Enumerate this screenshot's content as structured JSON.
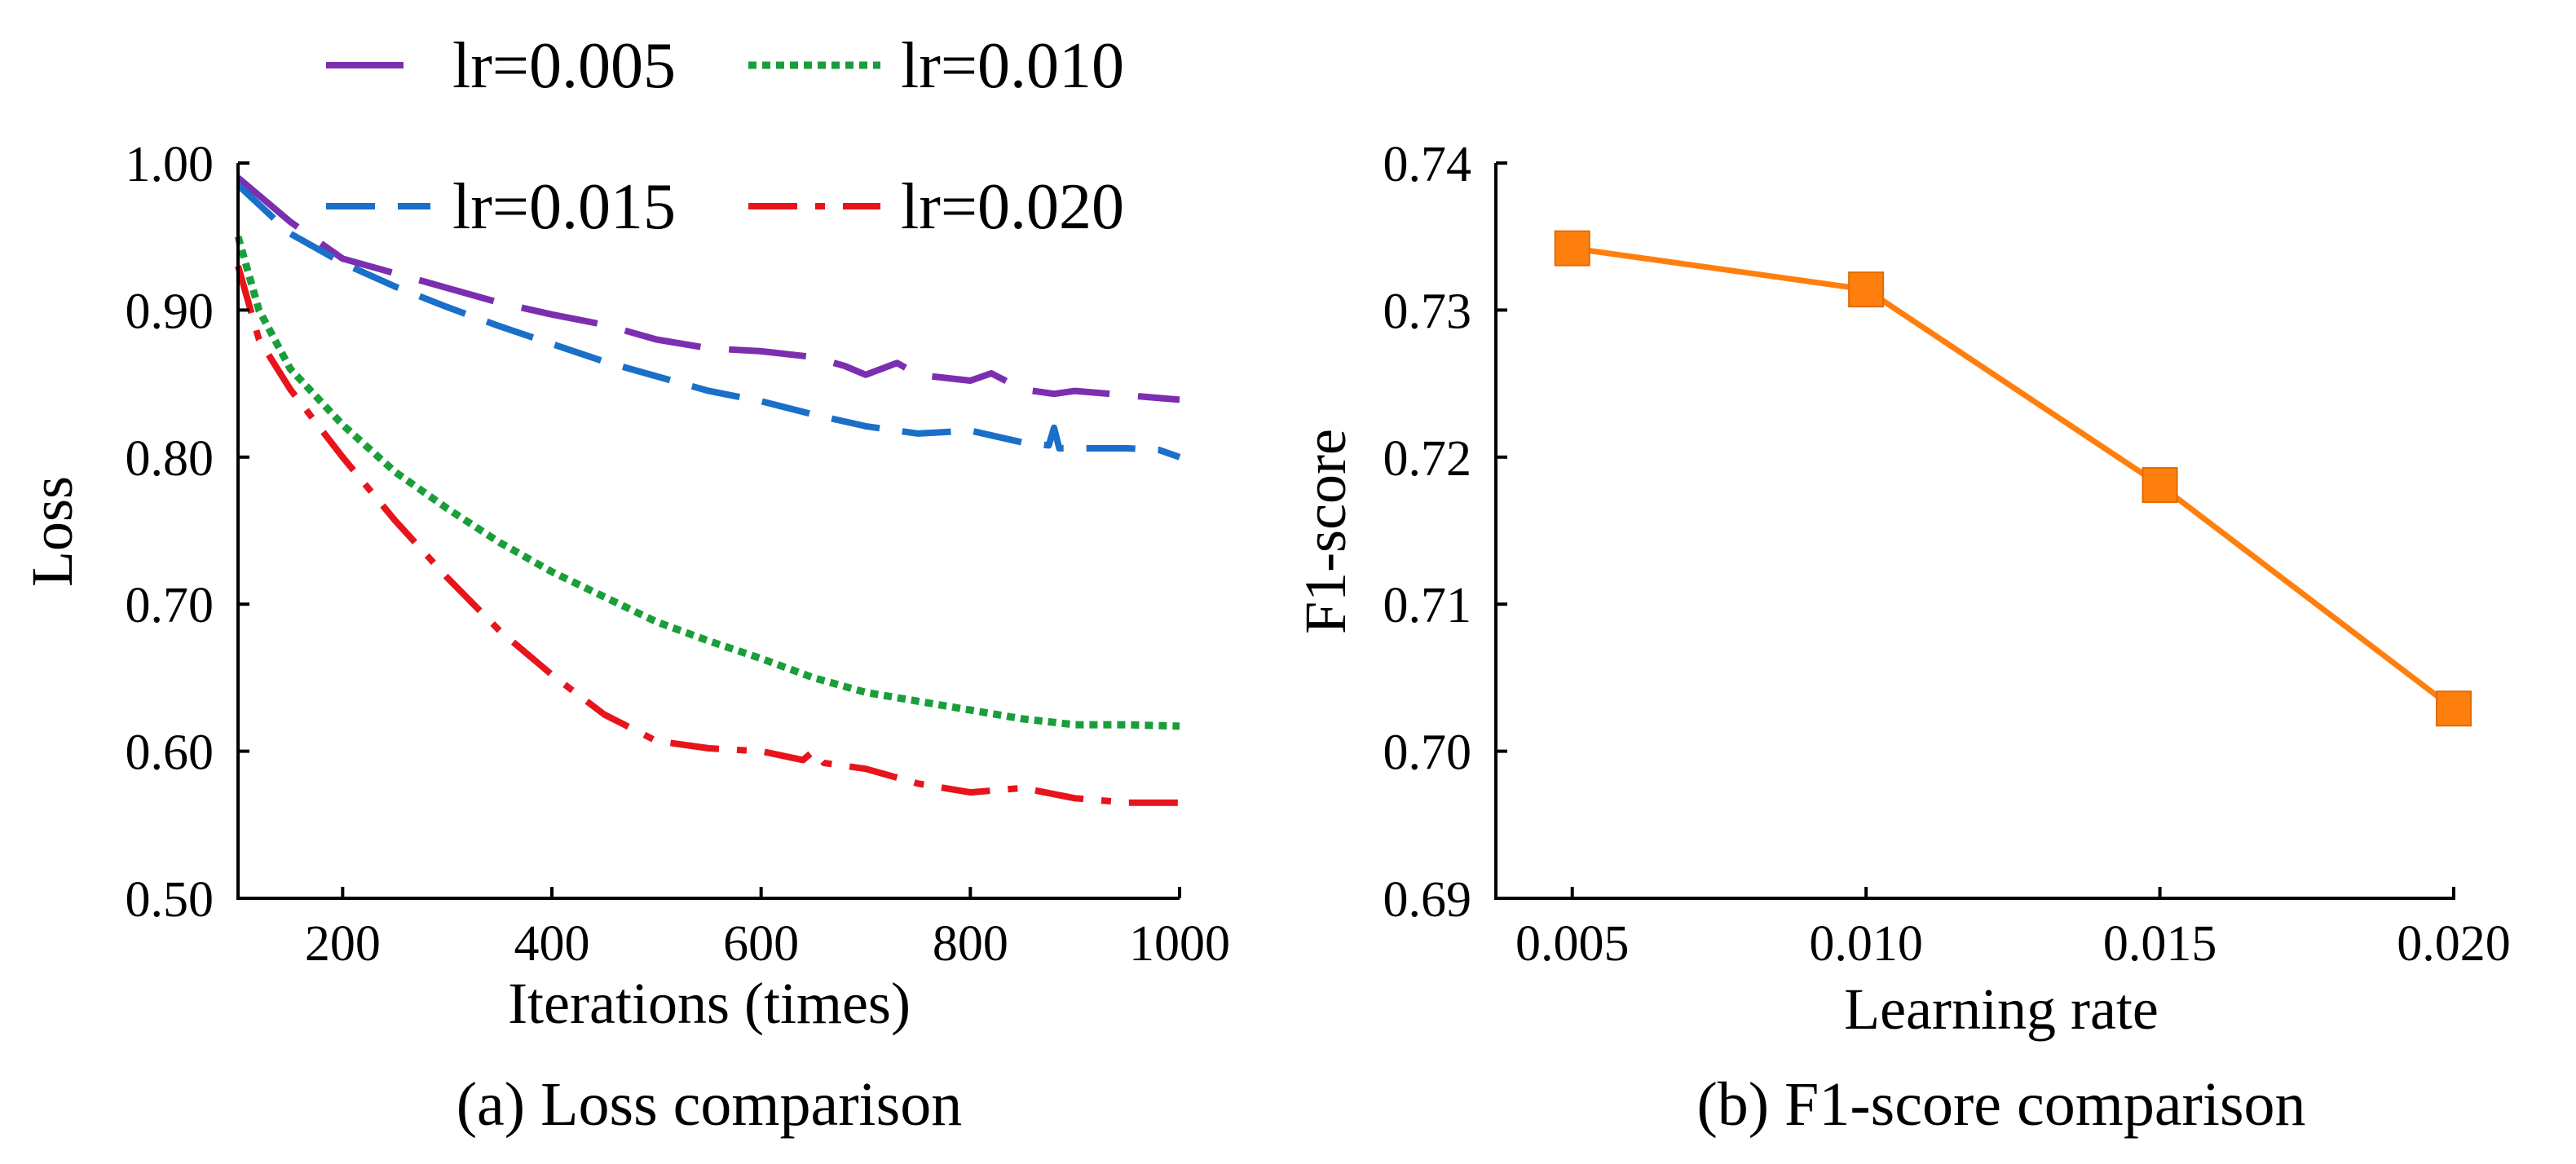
{
  "chart_data": [
    {
      "type": "line",
      "caption": "(a) Loss comparison",
      "xlabel": "Iterations (times)",
      "ylabel": "Loss",
      "xlim": [
        100,
        1000
      ],
      "ylim": [
        0.5,
        1.0
      ],
      "xticks": [
        200,
        400,
        600,
        800,
        1000
      ],
      "xtick_labels": [
        "200",
        "400",
        "600",
        "800",
        "1000"
      ],
      "yticks": [
        0.5,
        0.6,
        0.7,
        0.8,
        0.9,
        1.0
      ],
      "ytick_labels": [
        "0.50",
        "0.60",
        "0.70",
        "0.80",
        "0.90",
        "1.00"
      ],
      "grid": false,
      "legend_position": "top",
      "series": [
        {
          "name": "lr=0.005",
          "color": "#7b2fb0",
          "style": "long-dash",
          "x": [
            100,
            150,
            200,
            250,
            300,
            350,
            400,
            450,
            500,
            550,
            600,
            650,
            680,
            700,
            730,
            750,
            800,
            820,
            850,
            880,
            900,
            950,
            1000
          ],
          "y": [
            0.99,
            0.96,
            0.935,
            0.925,
            0.915,
            0.905,
            0.897,
            0.89,
            0.88,
            0.874,
            0.872,
            0.868,
            0.862,
            0.856,
            0.864,
            0.856,
            0.852,
            0.857,
            0.846,
            0.843,
            0.845,
            0.842,
            0.839
          ]
        },
        {
          "name": "lr=0.010",
          "color": "#1a9e3a",
          "style": "dotted",
          "x": [
            100,
            120,
            150,
            200,
            250,
            300,
            350,
            400,
            450,
            500,
            550,
            600,
            650,
            700,
            750,
            800,
            850,
            900,
            950,
            1000
          ],
          "y": [
            0.95,
            0.9,
            0.86,
            0.822,
            0.79,
            0.765,
            0.742,
            0.722,
            0.705,
            0.688,
            0.675,
            0.663,
            0.65,
            0.64,
            0.634,
            0.628,
            0.622,
            0.618,
            0.618,
            0.617
          ]
        },
        {
          "name": "lr=0.015",
          "color": "#1a6fc9",
          "style": "dashed",
          "x": [
            100,
            150,
            200,
            250,
            300,
            350,
            400,
            450,
            500,
            550,
            600,
            650,
            700,
            750,
            800,
            850,
            875,
            880,
            885,
            900,
            950,
            980,
            1000
          ],
          "y": [
            0.985,
            0.952,
            0.932,
            0.916,
            0.902,
            0.889,
            0.877,
            0.865,
            0.855,
            0.845,
            0.838,
            0.829,
            0.821,
            0.816,
            0.818,
            0.81,
            0.808,
            0.82,
            0.806,
            0.806,
            0.806,
            0.805,
            0.8
          ]
        },
        {
          "name": "lr=0.020",
          "color": "#e8141c",
          "style": "dash-dot",
          "x": [
            100,
            120,
            150,
            200,
            250,
            300,
            350,
            400,
            450,
            500,
            550,
            600,
            640,
            650,
            660,
            700,
            750,
            800,
            850,
            900,
            950,
            1000
          ],
          "y": [
            0.93,
            0.88,
            0.846,
            0.8,
            0.757,
            0.718,
            0.682,
            0.652,
            0.625,
            0.607,
            0.602,
            0.6,
            0.594,
            0.6,
            0.592,
            0.588,
            0.578,
            0.572,
            0.575,
            0.568,
            0.565,
            0.565
          ]
        }
      ]
    },
    {
      "type": "line",
      "caption": "(b) F1-score comparison",
      "xlabel": "Learning rate",
      "ylabel": "F1-score",
      "categories": [
        "0.005",
        "0.010",
        "0.015",
        "0.020"
      ],
      "x": [
        0.005,
        0.01,
        0.015,
        0.02
      ],
      "xlim": [
        0.0037,
        0.02
      ],
      "ylim": [
        0.69,
        0.74
      ],
      "yticks": [
        0.69,
        0.7,
        0.71,
        0.72,
        0.73,
        0.74
      ],
      "ytick_labels": [
        "0.69",
        "0.70",
        "0.71",
        "0.72",
        "0.73",
        "0.74"
      ],
      "grid": false,
      "series": [
        {
          "name": "F1-score",
          "color": "#ff7f0e",
          "marker": "square",
          "values": [
            0.7342,
            0.7314,
            0.7181,
            0.7029
          ]
        }
      ]
    }
  ]
}
